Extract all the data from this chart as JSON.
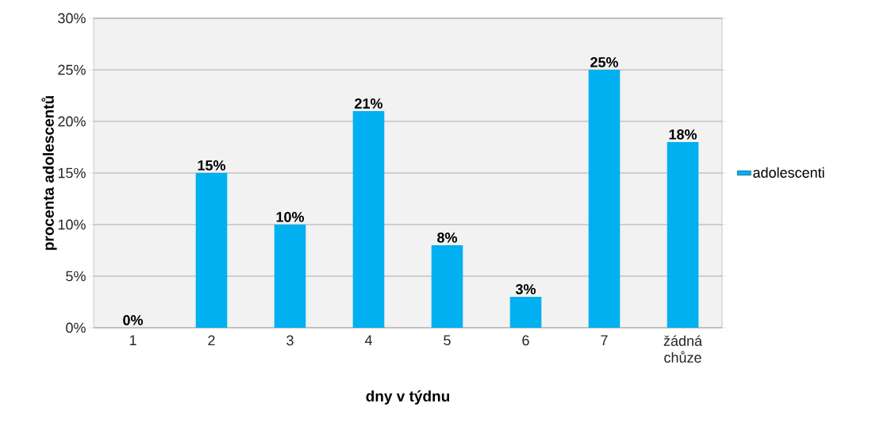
{
  "chart_data": {
    "type": "bar",
    "xlabel": "dny v týdnu",
    "ylabel": "procenta adolescentů",
    "categories": [
      "1",
      "2",
      "3",
      "4",
      "5",
      "6",
      "7",
      "žádná chůze"
    ],
    "series": [
      {
        "name": "adolescenti",
        "color": "#00b0f0",
        "values": [
          0,
          15,
          10,
          21,
          8,
          3,
          25,
          18
        ]
      }
    ],
    "value_labels": [
      "0%",
      "15%",
      "10%",
      "21%",
      "8%",
      "3%",
      "25%",
      "18%"
    ],
    "ylim": [
      0,
      30
    ],
    "yticks": [
      {
        "value": 0,
        "label": "0%"
      },
      {
        "value": 5,
        "label": "5%"
      },
      {
        "value": 10,
        "label": "10%"
      },
      {
        "value": 15,
        "label": "15%"
      },
      {
        "value": 20,
        "label": "20%"
      },
      {
        "value": 25,
        "label": "25%"
      },
      {
        "value": 30,
        "label": "30%"
      }
    ],
    "grid": "y",
    "legend": "right"
  }
}
